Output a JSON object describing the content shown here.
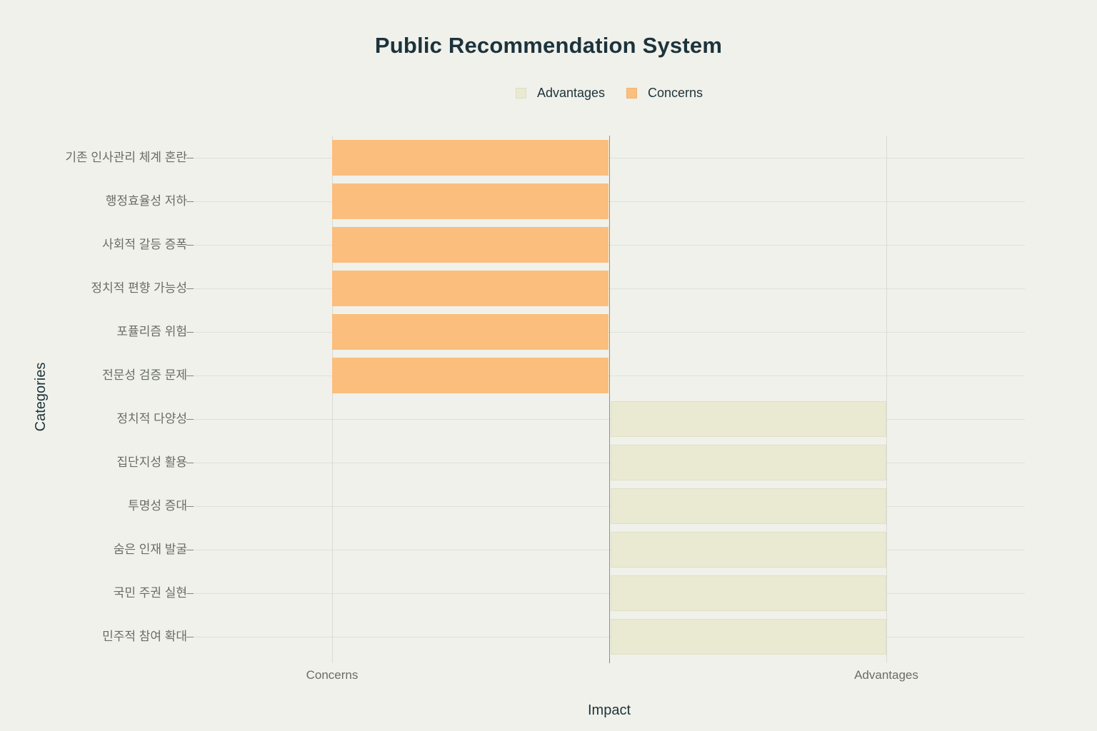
{
  "title": "Public Recommendation System",
  "legend": {
    "items": [
      {
        "label": "Advantages",
        "color": "#EAE9D2"
      },
      {
        "label": "Concerns",
        "color": "#FBBE7D"
      }
    ]
  },
  "axes": {
    "x_title": "Impact",
    "y_title": "Categories"
  },
  "chart_data": {
    "type": "bar",
    "orientation": "horizontal",
    "diverging": true,
    "title": "Public Recommendation System",
    "xlabel": "Impact",
    "ylabel": "Categories",
    "grid": true,
    "legend_position": "top-center",
    "xlim": [
      -1.5,
      1.5
    ],
    "x_tick_positions": [
      -1,
      1
    ],
    "x_tick_labels": [
      "Concerns",
      "Advantages"
    ],
    "categories": [
      "기존 인사관리 체계 혼란",
      "행정효율성 저하",
      "사회적 갈등 증폭",
      "정치적 편향 가능성",
      "포퓰리즘 위험",
      "전문성 검증 문제",
      "정치적 다양성",
      "집단지성 활용",
      "투명성 증대",
      "숨은 인재 발굴",
      "국민 주권 실현",
      "민주적 참여 확대"
    ],
    "series": [
      {
        "name": "Concerns",
        "color": "#FBBE7D",
        "values": [
          -1,
          -1,
          -1,
          -1,
          -1,
          -1,
          null,
          null,
          null,
          null,
          null,
          null
        ]
      },
      {
        "name": "Advantages",
        "color": "#EAE9D2",
        "values": [
          null,
          null,
          null,
          null,
          null,
          null,
          1,
          1,
          1,
          1,
          1,
          1
        ]
      }
    ]
  },
  "colors": {
    "background": "#F0F1EA",
    "grid_h": "#DFE1D8",
    "grid_v": "#D9DBD2",
    "zero_line": "#8E918A",
    "tick": "#83867E",
    "muted_text": "#696D66",
    "dark_text": "#1C333C"
  }
}
